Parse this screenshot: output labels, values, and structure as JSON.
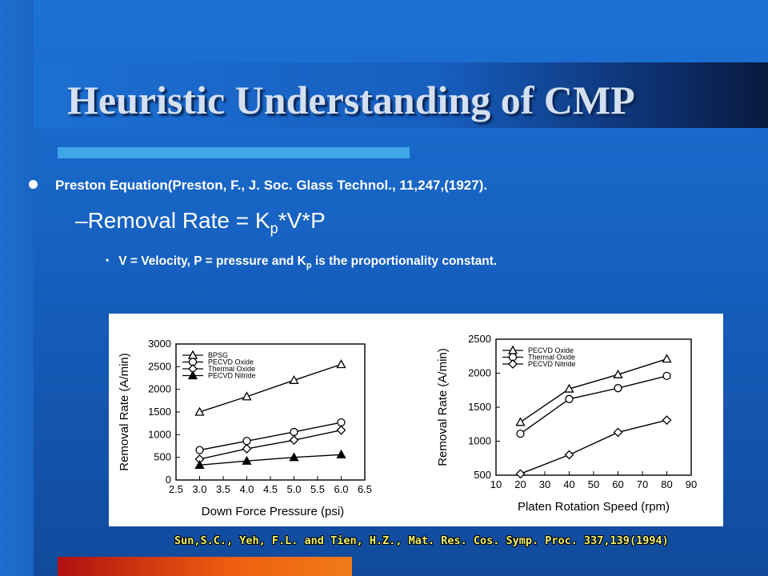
{
  "slide": {
    "title": "Heuristic Understanding of CMP",
    "bullet1": "Preston Equation(Preston, F., J. Soc. Glass Technol., 11,247,(1927).",
    "bullet2_prefix": "–Removal Rate = K",
    "bullet2_sub": "p",
    "bullet2_suffix": "*V*P",
    "bullet3_prefix": "V = Velocity, P = pressure and K",
    "bullet3_sub": "p",
    "bullet3_suffix": " is the proportionality constant.",
    "citation": "Sun,S.C., Yeh, F.L. and Tien, H.Z., Mat. Res. Cos. Symp. Proc. 337,139(1994)",
    "colors": {
      "background": "#1660c0",
      "accent_bar": "#3fa6ea",
      "citation": "#f2f26a",
      "orange_bar": "#ee6010"
    }
  },
  "chart_data": [
    {
      "type": "line",
      "xlabel": "Down Force Pressure (psi)",
      "ylabel": "Removal Rate (A/min)",
      "xlim": [
        2.5,
        6.5
      ],
      "ylim": [
        0,
        3000
      ],
      "xticks": [
        "2.5",
        "3.0",
        "3.5",
        "4.0",
        "4.5",
        "5.0",
        "5.5",
        "6.0",
        "6.5"
      ],
      "yticks": [
        "0",
        "500",
        "1000",
        "1500",
        "2000",
        "2500",
        "3000"
      ],
      "legend_position": "top-left",
      "x": [
        3.0,
        4.0,
        5.0,
        6.0
      ],
      "series": [
        {
          "name": "BPSG",
          "marker": "triangle-open",
          "values": [
            1500,
            1840,
            2200,
            2550
          ]
        },
        {
          "name": "PECVD Oxide",
          "marker": "circle-open",
          "values": [
            660,
            860,
            1060,
            1270
          ]
        },
        {
          "name": "Thermal Oxide",
          "marker": "diamond-open",
          "values": [
            460,
            690,
            880,
            1100
          ]
        },
        {
          "name": "PECVD Nitride",
          "marker": "triangle-filled",
          "values": [
            330,
            420,
            500,
            560
          ]
        }
      ]
    },
    {
      "type": "line",
      "xlabel": "Platen Rotation Speed (rpm)",
      "ylabel": "Removal Rate (A/min)",
      "xlim": [
        10,
        90
      ],
      "ylim": [
        500,
        2500
      ],
      "xticks": [
        "10",
        "20",
        "30",
        "40",
        "50",
        "60",
        "70",
        "80",
        "90"
      ],
      "yticks": [
        "500",
        "1000",
        "1500",
        "2000",
        "2500"
      ],
      "legend_position": "top-left",
      "x": [
        20,
        40,
        60,
        80
      ],
      "series": [
        {
          "name": "PECVD Oxide",
          "marker": "triangle-open",
          "values": [
            1280,
            1770,
            1980,
            2210
          ]
        },
        {
          "name": "Thermal Oxide",
          "marker": "circle-open",
          "values": [
            1110,
            1620,
            1780,
            1960
          ]
        },
        {
          "name": "PECVD Nitride",
          "marker": "diamond-open",
          "values": [
            520,
            800,
            1130,
            1310
          ]
        }
      ]
    }
  ]
}
